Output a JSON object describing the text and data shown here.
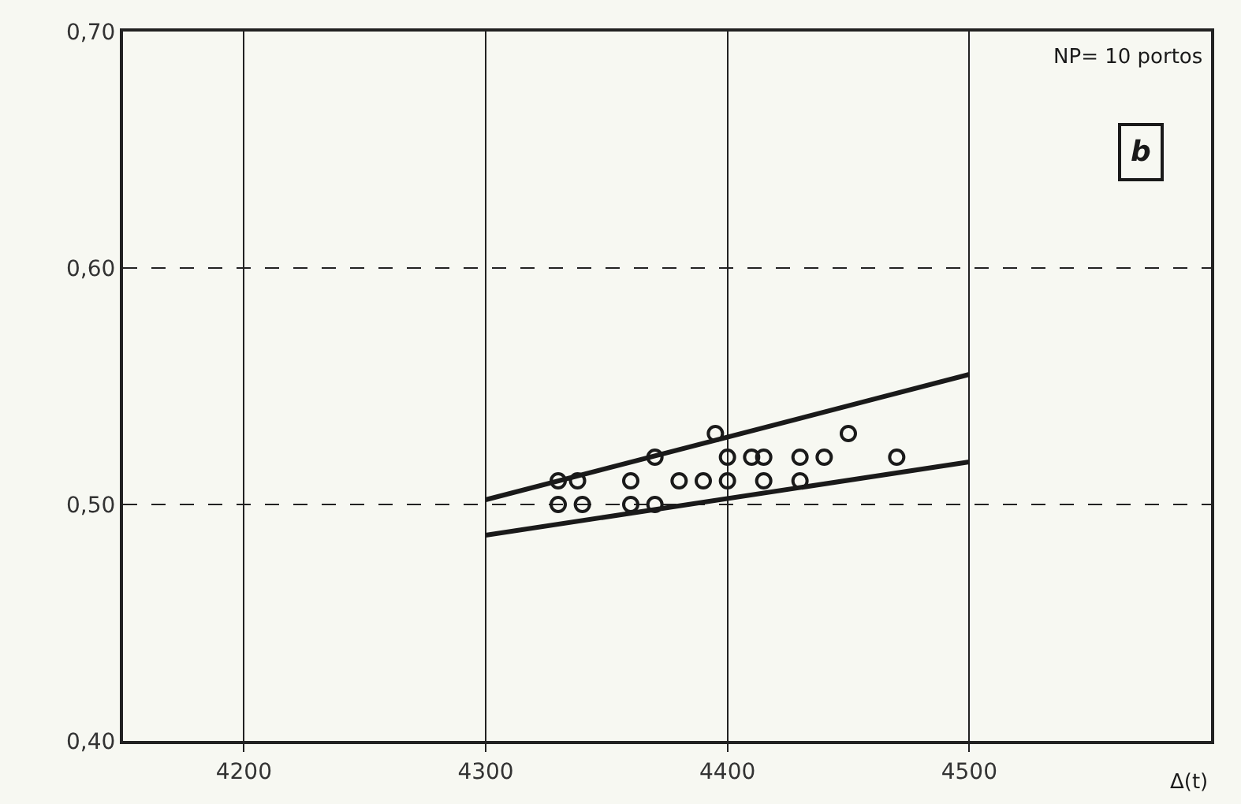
{
  "chart_data": {
    "type": "scatter",
    "xlabel": "Δ(t)",
    "annotations": [
      "NP= 10 portos",
      "b"
    ],
    "xlim": [
      4150,
      4600
    ],
    "xticks": [
      4200,
      4300,
      4400,
      4500
    ],
    "ylim": [
      0.4,
      0.7
    ],
    "yticks": [
      {
        "value": 0.4,
        "label": "0,40"
      },
      {
        "value": 0.5,
        "label": "0,50"
      },
      {
        "value": 0.6,
        "label": "0,60"
      },
      {
        "value": 0.7,
        "label": "0,70"
      }
    ],
    "grid": true,
    "marker": "circle",
    "series": [
      {
        "color": "#1a1a1a",
        "x": [
          4330,
          4338,
          4330,
          4340,
          4360,
          4360,
          4370,
          4370,
          4380,
          4390,
          4395,
          4400,
          4400,
          4410,
          4415,
          4415,
          4430,
          4430,
          4440,
          4450,
          4470
        ],
        "values": [
          0.51,
          0.51,
          0.5,
          0.5,
          0.51,
          0.5,
          0.5,
          0.52,
          0.51,
          0.51,
          0.53,
          0.52,
          0.51,
          0.52,
          0.52,
          0.51,
          0.52,
          0.51,
          0.52,
          0.53,
          0.52
        ]
      },
      {
        "type": "line",
        "color": "#1a1a1a",
        "line_style": "solid",
        "marker": "none",
        "x": [
          4300,
          4500
        ],
        "values": [
          0.502,
          0.555
        ]
      },
      {
        "type": "line",
        "color": "#1a1a1a",
        "line_style": "solid",
        "marker": "none",
        "x": [
          4300,
          4500
        ],
        "values": [
          0.487,
          0.518
        ]
      }
    ]
  }
}
